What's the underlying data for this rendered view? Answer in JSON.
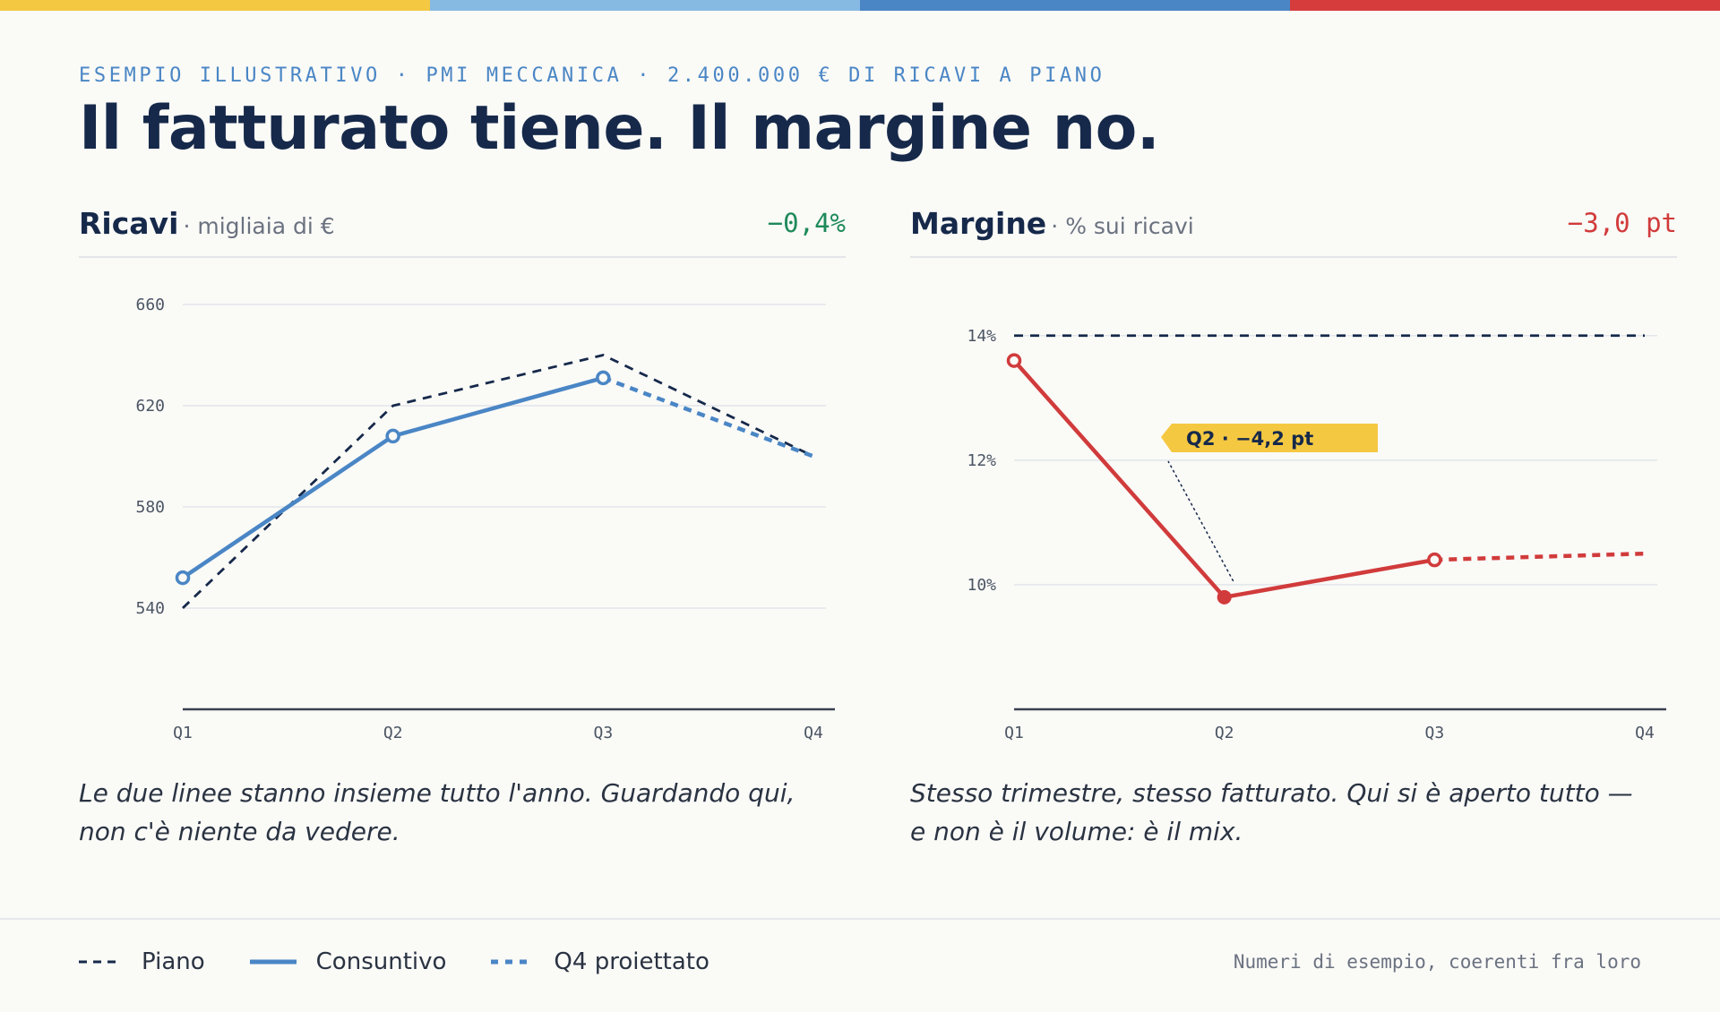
{
  "colors": {
    "topbar": [
      "#f5c842",
      "#86bae3",
      "#4a86c5",
      "#d63c3c"
    ],
    "plan": "#16294a",
    "actual_revenue": "#4a86c5",
    "actual_margin": "#d13b3b",
    "positive": "#1e8a5a",
    "negative": "#d13b3b",
    "annotation_bg": "#f5c842"
  },
  "header": {
    "eyebrow": "ESEMPIO ILLUSTRATIVO · PMI MECCANICA · 2.400.000 € DI RICAVI A PIANO",
    "headline": "Il fatturato tiene. Il margine no."
  },
  "panels": {
    "revenue": {
      "title": "Ricavi",
      "subtitle": "· migliaia di €",
      "delta": "−0,4%",
      "caption": "Le due linee stanno insieme tutto l'anno. Guardando qui, non c'è niente da vedere."
    },
    "margin": {
      "title": "Margine",
      "subtitle": "· % sui ricavi",
      "delta": "−3,0 pt",
      "caption": "Stesso trimestre, stesso fatturato. Qui si è aperto tutto — e non è il volume: è il mix.",
      "annotation": "Q2 · −4,2 pt"
    }
  },
  "legend": {
    "plan": "Piano",
    "actual": "Consuntivo",
    "projected": "Q4 proiettato"
  },
  "footnote": "Numeri di esempio, coerenti fra loro",
  "chart_data": [
    {
      "type": "line",
      "categories": [
        "Q1",
        "Q2",
        "Q3",
        "Q4"
      ],
      "ylim": [
        500,
        660
      ],
      "yticks": [
        540,
        580,
        620,
        660
      ],
      "ytick_labels": [
        "540",
        "580",
        "620",
        "660"
      ],
      "grid": true,
      "series": [
        {
          "name": "Piano",
          "values": [
            540,
            620,
            640,
            600
          ],
          "style": "dashed"
        },
        {
          "name": "Consuntivo",
          "values": [
            552,
            608,
            631,
            null
          ],
          "style": "solid"
        },
        {
          "name": "Q4 proiettato",
          "values": [
            null,
            null,
            631,
            600
          ],
          "style": "dotted"
        }
      ]
    },
    {
      "type": "line",
      "categories": [
        "Q1",
        "Q2",
        "Q3",
        "Q4"
      ],
      "ylim": [
        8,
        14.5
      ],
      "yticks": [
        10,
        12,
        14
      ],
      "ytick_labels": [
        "10%",
        "12%",
        "14%"
      ],
      "grid": true,
      "series": [
        {
          "name": "Piano",
          "values": [
            14,
            14,
            14,
            14
          ],
          "style": "dashed"
        },
        {
          "name": "Consuntivo",
          "values": [
            13.6,
            9.8,
            10.4,
            null
          ],
          "style": "solid"
        },
        {
          "name": "Q4 proiettato",
          "values": [
            null,
            null,
            10.4,
            10.5
          ],
          "style": "dotted"
        }
      ],
      "annotation": {
        "category": "Q2",
        "text": "Q2 · −4,2 pt"
      }
    }
  ]
}
